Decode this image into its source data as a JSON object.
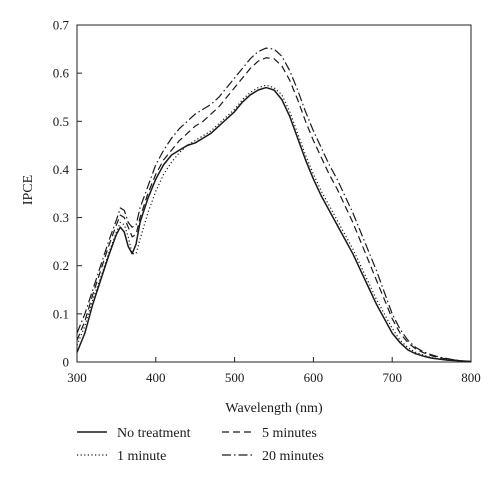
{
  "chart_data": {
    "type": "line",
    "xlabel": "Wavelength (nm)",
    "ylabel": "IPCE",
    "xlim": [
      300,
      800
    ],
    "ylim": [
      0,
      0.7
    ],
    "xticks": [
      300,
      400,
      500,
      600,
      700,
      800
    ],
    "yticks": [
      0,
      0.1,
      0.2,
      0.3,
      0.4,
      0.5,
      0.6,
      0.7
    ],
    "grid": false,
    "legend_position": "bottom",
    "series": [
      {
        "name": "No treatment",
        "style": "solid",
        "points": [
          [
            300,
            0.02
          ],
          [
            310,
            0.06
          ],
          [
            320,
            0.12
          ],
          [
            330,
            0.17
          ],
          [
            340,
            0.22
          ],
          [
            350,
            0.265
          ],
          [
            355,
            0.28
          ],
          [
            360,
            0.27
          ],
          [
            365,
            0.24
          ],
          [
            370,
            0.225
          ],
          [
            375,
            0.245
          ],
          [
            380,
            0.29
          ],
          [
            390,
            0.34
          ],
          [
            400,
            0.38
          ],
          [
            410,
            0.41
          ],
          [
            420,
            0.43
          ],
          [
            430,
            0.44
          ],
          [
            440,
            0.45
          ],
          [
            450,
            0.455
          ],
          [
            460,
            0.465
          ],
          [
            470,
            0.475
          ],
          [
            480,
            0.49
          ],
          [
            490,
            0.505
          ],
          [
            500,
            0.52
          ],
          [
            510,
            0.54
          ],
          [
            520,
            0.555
          ],
          [
            530,
            0.565
          ],
          [
            540,
            0.57
          ],
          [
            550,
            0.565
          ],
          [
            560,
            0.545
          ],
          [
            570,
            0.51
          ],
          [
            580,
            0.465
          ],
          [
            590,
            0.42
          ],
          [
            600,
            0.38
          ],
          [
            610,
            0.345
          ],
          [
            620,
            0.315
          ],
          [
            630,
            0.285
          ],
          [
            640,
            0.255
          ],
          [
            650,
            0.225
          ],
          [
            660,
            0.19
          ],
          [
            670,
            0.155
          ],
          [
            680,
            0.12
          ],
          [
            690,
            0.09
          ],
          [
            700,
            0.06
          ],
          [
            710,
            0.04
          ],
          [
            720,
            0.025
          ],
          [
            730,
            0.017
          ],
          [
            740,
            0.012
          ],
          [
            750,
            0.008
          ],
          [
            760,
            0.006
          ],
          [
            770,
            0.004
          ],
          [
            780,
            0.003
          ],
          [
            790,
            0.002
          ],
          [
            800,
            0.001
          ]
        ]
      },
      {
        "name": "1 minute",
        "style": "dotted",
        "points": [
          [
            300,
            0.035
          ],
          [
            310,
            0.075
          ],
          [
            320,
            0.13
          ],
          [
            330,
            0.175
          ],
          [
            340,
            0.225
          ],
          [
            350,
            0.27
          ],
          [
            355,
            0.29
          ],
          [
            360,
            0.285
          ],
          [
            365,
            0.26
          ],
          [
            370,
            0.225
          ],
          [
            375,
            0.225
          ],
          [
            380,
            0.255
          ],
          [
            390,
            0.31
          ],
          [
            400,
            0.355
          ],
          [
            410,
            0.39
          ],
          [
            420,
            0.415
          ],
          [
            430,
            0.435
          ],
          [
            440,
            0.45
          ],
          [
            450,
            0.46
          ],
          [
            460,
            0.47
          ],
          [
            470,
            0.48
          ],
          [
            480,
            0.495
          ],
          [
            490,
            0.51
          ],
          [
            500,
            0.525
          ],
          [
            510,
            0.545
          ],
          [
            520,
            0.56
          ],
          [
            530,
            0.57
          ],
          [
            540,
            0.575
          ],
          [
            550,
            0.57
          ],
          [
            560,
            0.555
          ],
          [
            570,
            0.52
          ],
          [
            580,
            0.475
          ],
          [
            590,
            0.43
          ],
          [
            600,
            0.39
          ],
          [
            610,
            0.355
          ],
          [
            620,
            0.325
          ],
          [
            630,
            0.295
          ],
          [
            640,
            0.265
          ],
          [
            650,
            0.235
          ],
          [
            660,
            0.2
          ],
          [
            670,
            0.165
          ],
          [
            680,
            0.13
          ],
          [
            690,
            0.1
          ],
          [
            700,
            0.07
          ],
          [
            710,
            0.045
          ],
          [
            720,
            0.03
          ],
          [
            730,
            0.02
          ],
          [
            740,
            0.014
          ],
          [
            750,
            0.009
          ],
          [
            760,
            0.006
          ],
          [
            770,
            0.004
          ],
          [
            780,
            0.003
          ],
          [
            790,
            0.002
          ],
          [
            800,
            0.001
          ]
        ]
      },
      {
        "name": "5 minutes",
        "style": "dashed",
        "points": [
          [
            300,
            0.045
          ],
          [
            310,
            0.085
          ],
          [
            320,
            0.14
          ],
          [
            330,
            0.19
          ],
          [
            340,
            0.24
          ],
          [
            350,
            0.285
          ],
          [
            355,
            0.305
          ],
          [
            360,
            0.3
          ],
          [
            365,
            0.28
          ],
          [
            370,
            0.26
          ],
          [
            375,
            0.265
          ],
          [
            380,
            0.3
          ],
          [
            390,
            0.35
          ],
          [
            400,
            0.39
          ],
          [
            410,
            0.42
          ],
          [
            420,
            0.44
          ],
          [
            430,
            0.46
          ],
          [
            440,
            0.475
          ],
          [
            450,
            0.49
          ],
          [
            460,
            0.5
          ],
          [
            470,
            0.515
          ],
          [
            480,
            0.53
          ],
          [
            490,
            0.55
          ],
          [
            500,
            0.57
          ],
          [
            510,
            0.59
          ],
          [
            520,
            0.61
          ],
          [
            530,
            0.625
          ],
          [
            540,
            0.632
          ],
          [
            550,
            0.63
          ],
          [
            560,
            0.615
          ],
          [
            570,
            0.585
          ],
          [
            580,
            0.545
          ],
          [
            590,
            0.5
          ],
          [
            600,
            0.46
          ],
          [
            610,
            0.425
          ],
          [
            620,
            0.39
          ],
          [
            630,
            0.36
          ],
          [
            640,
            0.325
          ],
          [
            650,
            0.29
          ],
          [
            660,
            0.25
          ],
          [
            670,
            0.21
          ],
          [
            680,
            0.17
          ],
          [
            690,
            0.13
          ],
          [
            700,
            0.09
          ],
          [
            710,
            0.06
          ],
          [
            720,
            0.04
          ],
          [
            730,
            0.027
          ],
          [
            740,
            0.019
          ],
          [
            750,
            0.013
          ],
          [
            760,
            0.009
          ],
          [
            770,
            0.006
          ],
          [
            780,
            0.004
          ],
          [
            790,
            0.002
          ],
          [
            800,
            0.001
          ]
        ]
      },
      {
        "name": "20 minutes",
        "style": "dashdot",
        "points": [
          [
            300,
            0.06
          ],
          [
            310,
            0.1
          ],
          [
            320,
            0.15
          ],
          [
            330,
            0.2
          ],
          [
            340,
            0.25
          ],
          [
            350,
            0.295
          ],
          [
            355,
            0.32
          ],
          [
            360,
            0.315
          ],
          [
            365,
            0.29
          ],
          [
            370,
            0.28
          ],
          [
            375,
            0.285
          ],
          [
            380,
            0.32
          ],
          [
            390,
            0.365
          ],
          [
            400,
            0.41
          ],
          [
            410,
            0.44
          ],
          [
            420,
            0.465
          ],
          [
            430,
            0.485
          ],
          [
            440,
            0.5
          ],
          [
            450,
            0.515
          ],
          [
            460,
            0.525
          ],
          [
            470,
            0.535
          ],
          [
            480,
            0.55
          ],
          [
            490,
            0.57
          ],
          [
            500,
            0.59
          ],
          [
            510,
            0.61
          ],
          [
            520,
            0.63
          ],
          [
            530,
            0.645
          ],
          [
            540,
            0.652
          ],
          [
            550,
            0.65
          ],
          [
            560,
            0.635
          ],
          [
            570,
            0.605
          ],
          [
            580,
            0.565
          ],
          [
            590,
            0.52
          ],
          [
            600,
            0.48
          ],
          [
            610,
            0.445
          ],
          [
            620,
            0.41
          ],
          [
            630,
            0.38
          ],
          [
            640,
            0.345
          ],
          [
            650,
            0.31
          ],
          [
            660,
            0.27
          ],
          [
            670,
            0.23
          ],
          [
            680,
            0.19
          ],
          [
            690,
            0.145
          ],
          [
            700,
            0.1
          ],
          [
            710,
            0.068
          ],
          [
            720,
            0.045
          ],
          [
            730,
            0.03
          ],
          [
            740,
            0.021
          ],
          [
            750,
            0.015
          ],
          [
            760,
            0.01
          ],
          [
            770,
            0.007
          ],
          [
            780,
            0.004
          ],
          [
            790,
            0.002
          ],
          [
            800,
            0.001
          ]
        ]
      }
    ]
  }
}
